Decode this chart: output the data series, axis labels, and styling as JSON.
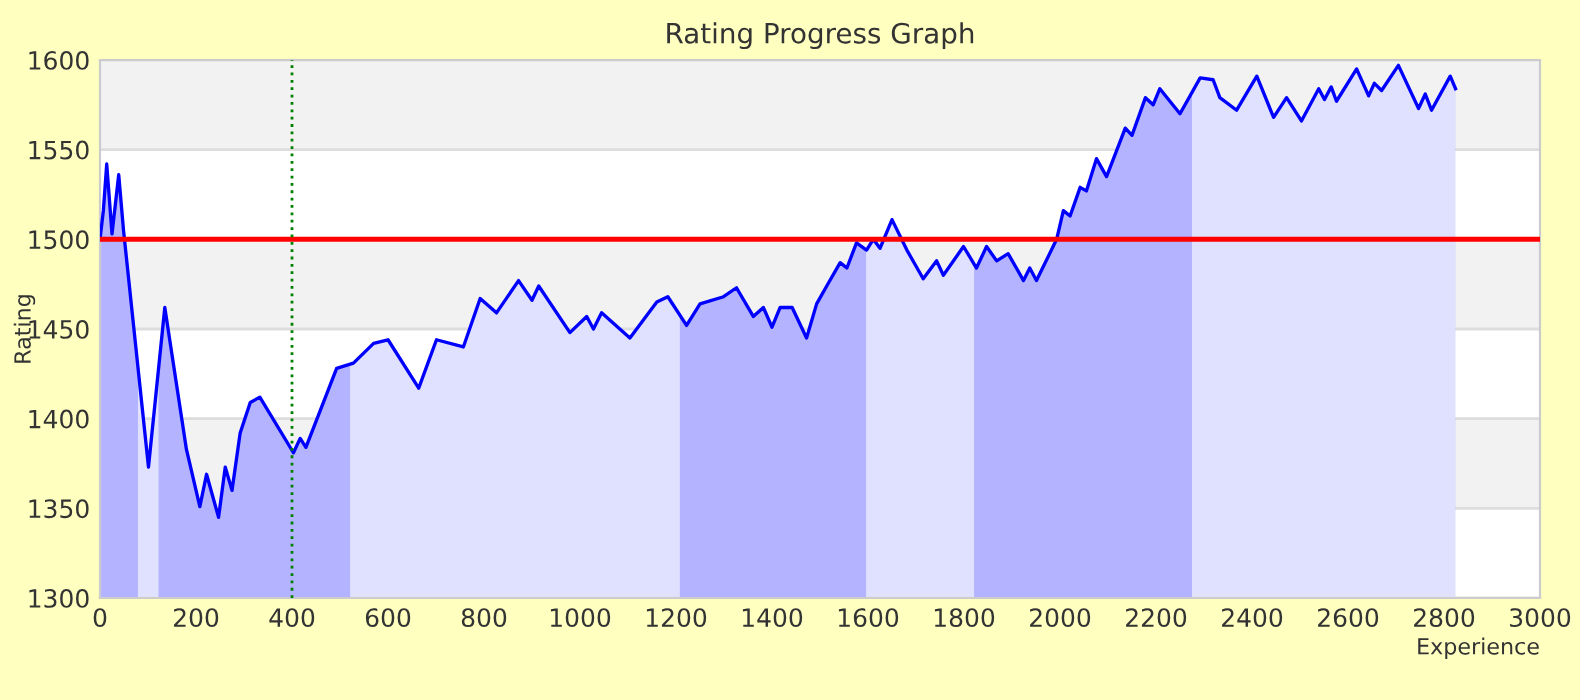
{
  "chart_data": {
    "type": "area",
    "title": "Rating Progress Graph",
    "xlabel": "Experience",
    "ylabel": "Rating",
    "series": [
      {
        "color": "#0000ff",
        "x": [
          0,
          7,
          14,
          25,
          39,
          49,
          101,
          135,
          180,
          208,
          222,
          247,
          261,
          275,
          292,
          313,
          333,
          403,
          417,
          429,
          493,
          528,
          570,
          600,
          664,
          701,
          757,
          792,
          826,
          872,
          900,
          914,
          979,
          1014,
          1028,
          1045,
          1104,
          1160,
          1183,
          1222,
          1250,
          1299,
          1326,
          1361,
          1382,
          1400,
          1417,
          1442,
          1472,
          1493,
          1514,
          1542,
          1556,
          1576,
          1597,
          1611,
          1625,
          1650,
          1681,
          1715,
          1743,
          1757,
          1799,
          1826,
          1847,
          1868,
          1892,
          1924,
          1937,
          1951,
          1993,
          2007,
          2021,
          2042,
          2055,
          2076,
          2097,
          2136,
          2150,
          2178,
          2194,
          2208,
          2250,
          2292,
          2319,
          2333,
          2368,
          2410,
          2445,
          2472,
          2503,
          2539,
          2551,
          2565,
          2576,
          2618,
          2643,
          2655,
          2670,
          2705,
          2747,
          2761,
          2774,
          2813,
          2824
        ],
        "values": [
          1500,
          1516,
          1542,
          1503,
          1536,
          1505,
          1373,
          1462,
          1383,
          1351,
          1369,
          1345,
          1373,
          1360,
          1392,
          1409,
          1412,
          1381,
          1389,
          1384,
          1428,
          1431,
          1442,
          1444,
          1417,
          1444,
          1440,
          1467,
          1459,
          1477,
          1466,
          1474,
          1448,
          1457,
          1450,
          1459,
          1445,
          1465,
          1468,
          1452,
          1464,
          1468,
          1473,
          1457,
          1462,
          1451,
          1462,
          1462,
          1445,
          1464,
          1474,
          1487,
          1484,
          1498,
          1494,
          1500,
          1495,
          1511,
          1494,
          1478,
          1488,
          1480,
          1496,
          1484,
          1496,
          1488,
          1492,
          1477,
          1484,
          1477,
          1500,
          1516,
          1513,
          1529,
          1527,
          1545,
          1535,
          1562,
          1558,
          1579,
          1575,
          1584,
          1570,
          1590,
          1589,
          1579,
          1572,
          1591,
          1568,
          1579,
          1566,
          1584,
          1578,
          1585,
          1577,
          1595,
          1580,
          1587,
          1583,
          1597,
          1573,
          1581,
          1572,
          1591,
          1584
        ]
      }
    ],
    "xlim": [
      0,
      3000
    ],
    "xticks": [
      0,
      200,
      400,
      600,
      800,
      1000,
      1200,
      1400,
      1600,
      1800,
      2000,
      2200,
      2400,
      2600,
      2800,
      3000
    ],
    "ylim": [
      1300,
      1600
    ],
    "yticks": [
      1300,
      1350,
      1400,
      1450,
      1500,
      1550,
      1600
    ],
    "grid": "y",
    "ref_lines": [
      {
        "axis": "y",
        "value": 1500,
        "color": "#ff0000",
        "line_style": "solid"
      },
      {
        "axis": "x",
        "value": 400,
        "color": "#008000",
        "line_style": "dotted"
      }
    ],
    "bands": [
      {
        "axis": "x",
        "from": 0,
        "to": 79,
        "color": "#ccccff"
      },
      {
        "axis": "x",
        "from": 122,
        "to": 521,
        "color": "#ccccff"
      },
      {
        "axis": "x",
        "from": 1208,
        "to": 1596,
        "color": "#ccccff"
      },
      {
        "axis": "x",
        "from": 1821,
        "to": 2275,
        "color": "#ccccff"
      }
    ]
  }
}
